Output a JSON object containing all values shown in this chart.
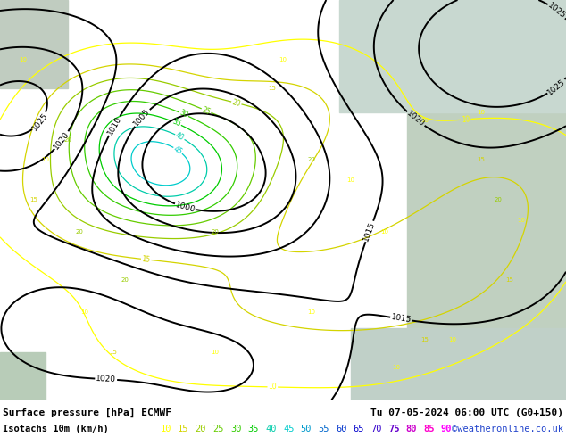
{
  "title_line1": "Surface pressure [hPa] ECMWF",
  "title_line2": "Tu 07-05-2024 06:00 UTC (G0+150)",
  "legend_label": "Isotachs 10m (km/h)",
  "copyright": "©weatheronline.co.uk",
  "isotach_values": [
    10,
    15,
    20,
    25,
    30,
    35,
    40,
    45,
    50,
    55,
    60,
    65,
    70,
    75,
    80,
    85,
    90
  ],
  "isotach_colors": [
    "#ffff00",
    "#d4d400",
    "#99cc00",
    "#66cc00",
    "#33cc00",
    "#00cc00",
    "#00ccaa",
    "#00cccc",
    "#0099cc",
    "#0066cc",
    "#0033cc",
    "#0000cc",
    "#3300cc",
    "#6600cc",
    "#cc00cc",
    "#ff00cc",
    "#ff00ff"
  ],
  "bg_color": "#d8ecd8",
  "sea_color": "#c8d8c8",
  "bottom_bar_color": "#ffffff",
  "text_color": "#000000",
  "font_size_legend": 7.5,
  "font_size_title": 8.0,
  "map_land_color": "#c8e8a0",
  "map_sea_color": "#d0d8d0",
  "isobar_color": "#000000",
  "isobar_lw": 1.4
}
